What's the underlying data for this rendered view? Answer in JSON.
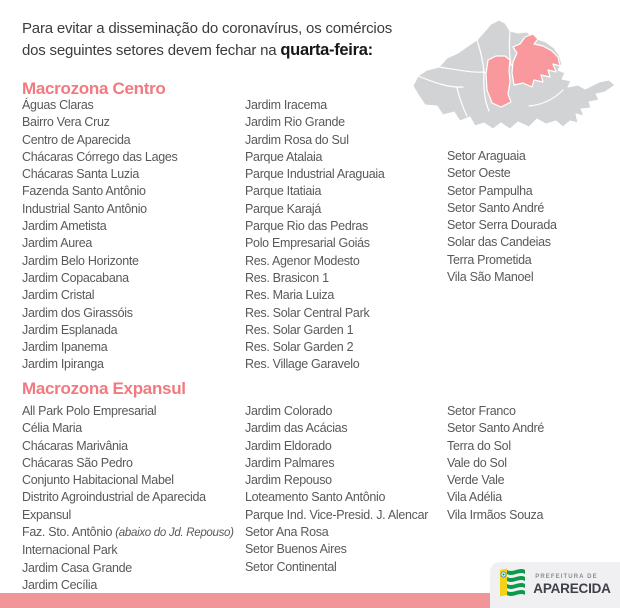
{
  "header": {
    "line1": "Para evitar a disseminação do coronavírus, os comércios",
    "line2": "dos seguintes setores devem fechar na ",
    "highlight": "quarta-feira:"
  },
  "map": {
    "label": "mapa de Aparecida com macrozonas destacadas",
    "region_gray": "#d2d3d5",
    "region_highlight": "#f9999d",
    "border": "#ffffff"
  },
  "sections": [
    {
      "title": "Macrozona Centro",
      "columns": [
        [
          "Águas Claras",
          "Bairro Vera Cruz",
          "Centro de Aparecida",
          "Chácaras  Córrego das Lages",
          "Chácaras Santa Luzia",
          "Fazenda Santo Antônio",
          "Industrial Santo Antônio",
          "Jardim Ametista",
          "Jardim Aurea",
          "Jardim Belo Horizonte",
          "Jardim Copacabana",
          "Jardim Cristal",
          "Jardim dos Girassóis",
          "Jardim Esplanada",
          "Jardim Ipanema",
          "Jardim Ipiranga"
        ],
        [
          "Jardim Iracema",
          "Jardim Rio Grande",
          "Jardim Rosa do Sul",
          "Parque Atalaia",
          "Parque Industrial Araguaia",
          "Parque Itatiaia",
          "Parque Karajá",
          "Parque Rio das Pedras",
          "Polo Empresarial Goiás",
          "Res. Agenor Modesto",
          "Res. Brasicon 1",
          "Res. Maria Luiza",
          "Res. Solar Central Park",
          "Res. Solar Garden 1",
          "Res. Solar Garden 2",
          "Res. Village Garavelo"
        ],
        [
          "Setor Araguaia",
          "Setor Oeste",
          "Setor Pampulha",
          "Setor Santo André",
          "Setor Serra Dourada",
          "Solar das Candeias",
          "Terra Prometida",
          "Vila São Manoel"
        ]
      ]
    },
    {
      "title": "Macrozona Expansul",
      "columns": [
        [
          "All Park Polo Empresarial",
          "Célia Maria",
          "Chácaras Marivânia",
          "Chácaras São Pedro",
          "Conjunto Habitacional Mabel",
          "Distrito Agroindustrial de Aparecida",
          "Expansul",
          {
            "text": "Faz. Sto. Antônio ",
            "note": "(abaixo do  Jd. Repouso)"
          },
          "Internacional Park",
          "Jardim Casa Grande",
          "Jardim Cecília"
        ],
        [
          "Jardim Colorado",
          "Jardim das Acácias",
          "Jardim Eldorado",
          "Jardim Palmares",
          "Jardim Repouso",
          "Loteamento Santo Antônio",
          "Parque Ind. Vice-Presid. J. Alencar",
          "Setor Ana Rosa",
          "Setor Buenos Aires",
          "Setor Continental"
        ],
        [
          "Setor Franco",
          "Setor Santo André",
          "Terra do Sol",
          "Vale do Sol",
          "Verde Vale",
          "Vila Adélia",
          "Vila Irmãos Souza"
        ]
      ]
    }
  ],
  "footer": {
    "logo_small": "PREFEITURA DE",
    "logo_name": "APARECIDA"
  },
  "colors": {
    "accent_pink": "#f2797f",
    "bar_pink": "#f29598",
    "body_text": "#58595c"
  }
}
